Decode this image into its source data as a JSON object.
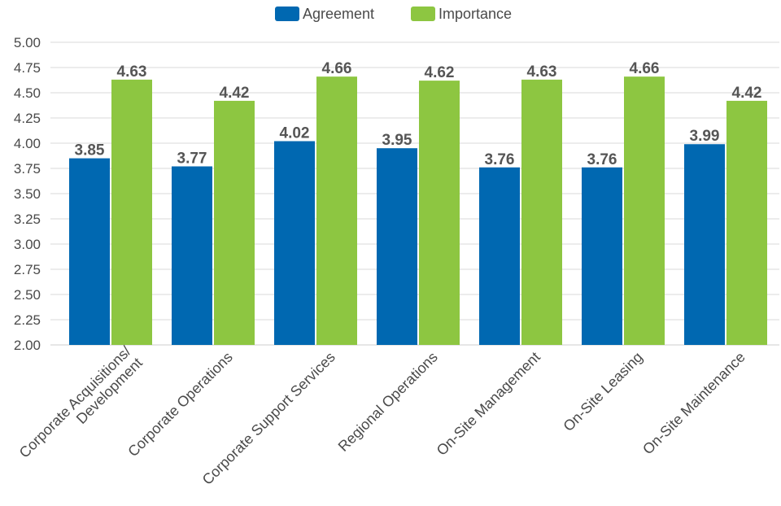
{
  "chart_data": {
    "type": "bar",
    "categories": [
      [
        "Corporate Acquisitions/",
        "Development"
      ],
      [
        "Corporate Operations"
      ],
      [
        "Corporate Support Services"
      ],
      [
        "Regional Operations"
      ],
      [
        "On-Site Management"
      ],
      [
        "On-Site Leasing"
      ],
      [
        "On-Site Maintenance"
      ]
    ],
    "series": [
      {
        "name": "Agreement",
        "color": "#0068b1",
        "values": [
          3.85,
          3.77,
          4.02,
          3.95,
          3.76,
          3.76,
          3.99
        ],
        "labels": [
          "3.85",
          "3.77",
          "4.02",
          "3.95",
          "3.76",
          "3.76",
          "3.99"
        ]
      },
      {
        "name": "Importance",
        "color": "#8dc641",
        "values": [
          4.63,
          4.42,
          4.66,
          4.62,
          4.63,
          4.66,
          4.42
        ],
        "labels": [
          "4.63",
          "4.42",
          "4.66",
          "4.62",
          "4.63",
          "4.66",
          "4.42"
        ]
      }
    ],
    "ylim": [
      2.0,
      5.0
    ],
    "y_ticks": [
      "2.00",
      "2.25",
      "2.50",
      "2.75",
      "3.00",
      "3.25",
      "3.50",
      "3.75",
      "4.00",
      "4.25",
      "4.50",
      "4.75",
      "5.00"
    ],
    "grid": true,
    "legend_position": "top-center",
    "title": "",
    "xlabel": "",
    "ylabel": ""
  }
}
